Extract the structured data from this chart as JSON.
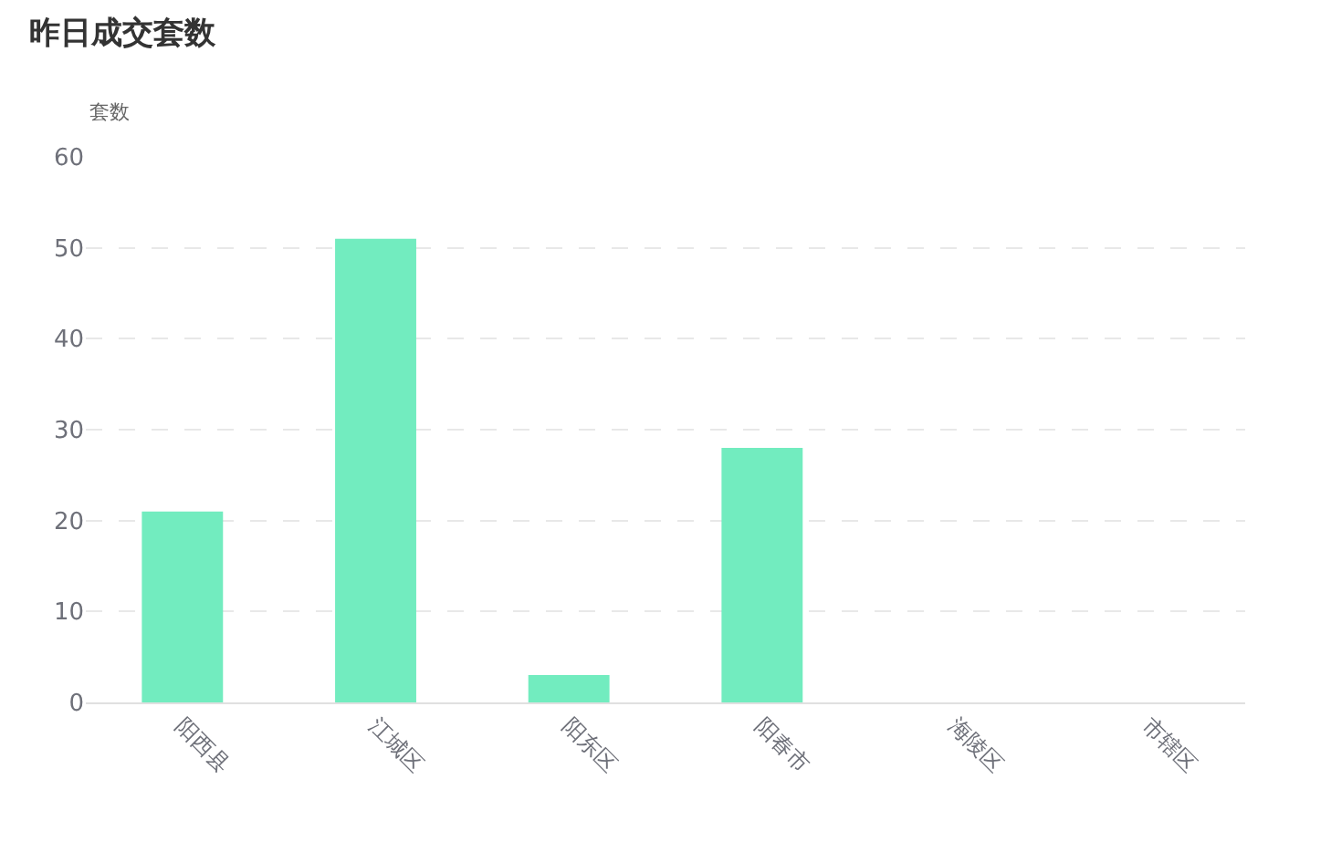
{
  "chart_data": {
    "type": "bar",
    "title": "昨日成交套数",
    "ylabel": "套数",
    "categories": [
      "阳西县",
      "江城区",
      "阳东区",
      "阳春市",
      "海陵区",
      "市辖区"
    ],
    "values": [
      21,
      51,
      3,
      28,
      0,
      0
    ],
    "color": "#72ecbf",
    "ylim": [
      0,
      60
    ],
    "yticks": [
      0,
      10,
      20,
      30,
      40,
      50,
      60
    ],
    "grid": "y",
    "legend": false
  }
}
